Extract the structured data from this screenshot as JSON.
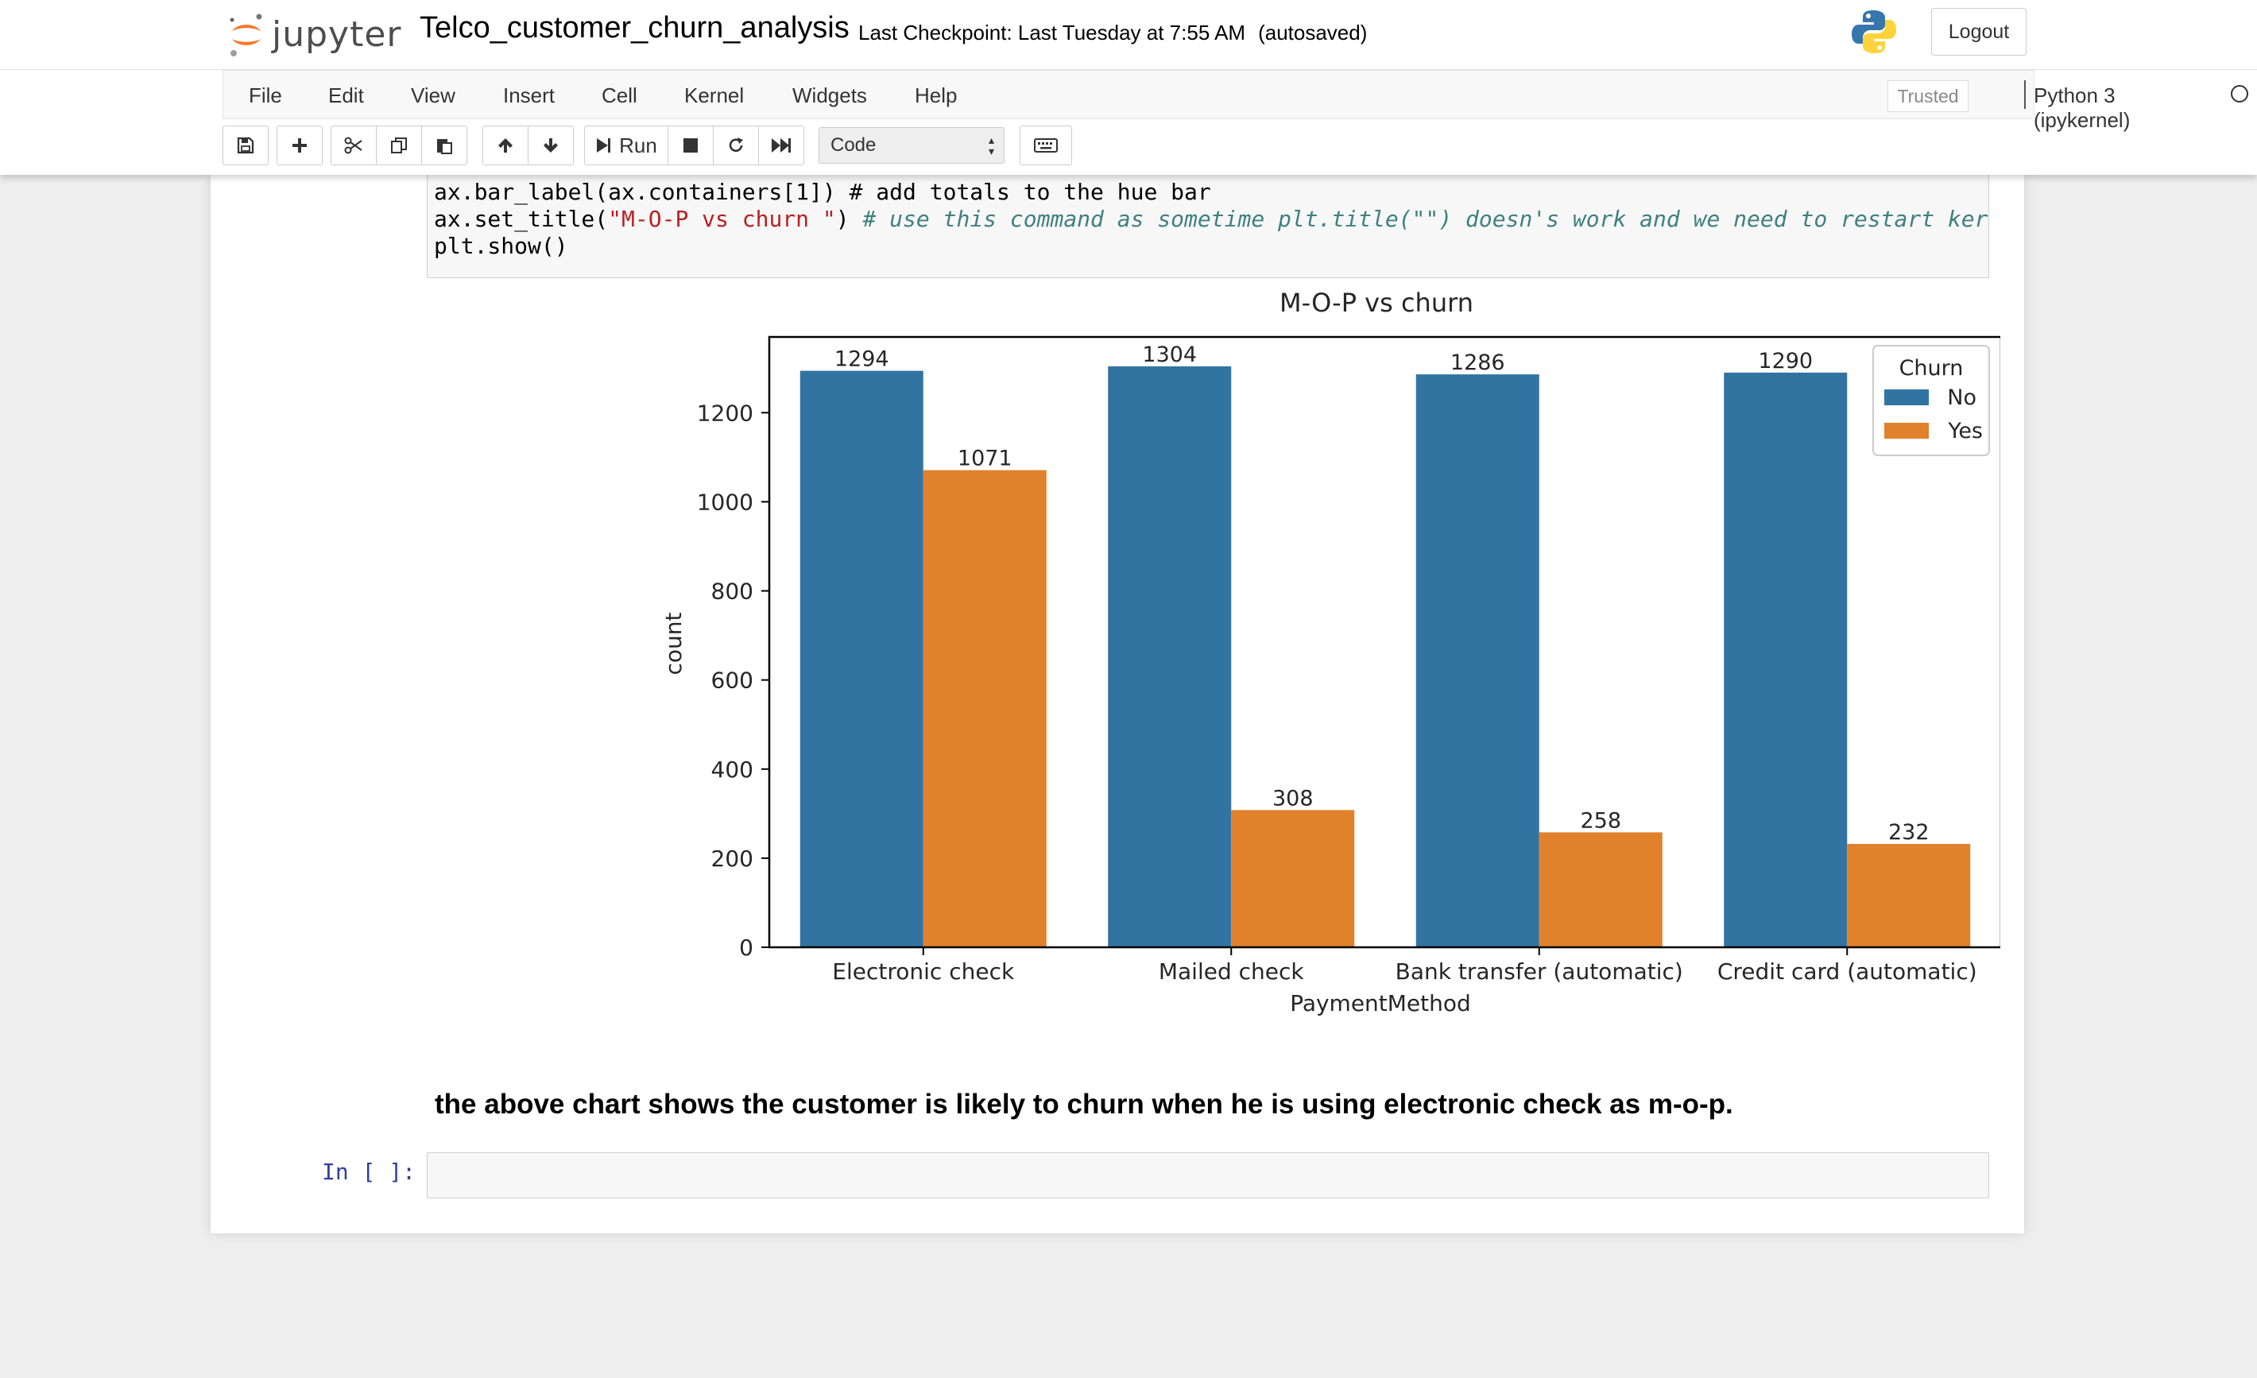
{
  "header": {
    "logo_text": "jupyter",
    "notebook_name": "Telco_customer_churn_analysis",
    "checkpoint": "Last Checkpoint: Last Tuesday at 7:55 AM",
    "autosave": "(autosaved)",
    "logout_label": "Logout"
  },
  "menu": {
    "items": [
      "File",
      "Edit",
      "View",
      "Insert",
      "Cell",
      "Kernel",
      "Widgets",
      "Help"
    ],
    "trusted": "Trusted",
    "kernel": "Python 3 (ipykernel)"
  },
  "toolbar": {
    "run_label": "Run",
    "cell_type": "Code"
  },
  "code": {
    "line1": "ax.bar_label(ax.containers[1]) # add totals to the hue bar",
    "line2_a": "ax.set_title(",
    "line2_str": "\"M-O-P vs churn \"",
    "line2_b": ") ",
    "line2_cmt": "# use this command as sometime plt.title(\"\") doesn's work and we need to restart ker",
    "line3": "plt.show()"
  },
  "chart_data": {
    "type": "bar",
    "title": "M-O-P vs churn",
    "xlabel": "PaymentMethod",
    "ylabel": "count",
    "categories": [
      "Electronic check",
      "Mailed check",
      "Bank transfer (automatic)",
      "Credit card (automatic)"
    ],
    "series": [
      {
        "name": "No",
        "values": [
          1294,
          1304,
          1286,
          1290
        ],
        "color": "#3274a1"
      },
      {
        "name": "Yes",
        "values": [
          1071,
          308,
          258,
          232
        ],
        "color": "#e1812c"
      }
    ],
    "ylim": [
      0,
      1370
    ],
    "yticks": [
      0,
      200,
      400,
      600,
      800,
      1000,
      1200
    ],
    "legend_title": "Churn",
    "legend_position": "top-right",
    "grid": false
  },
  "markdown": {
    "text": "the above chart shows the customer is likely to churn when he is using electronic check as m-o-p."
  },
  "empty_cell": {
    "prompt": "In [ ]:"
  }
}
